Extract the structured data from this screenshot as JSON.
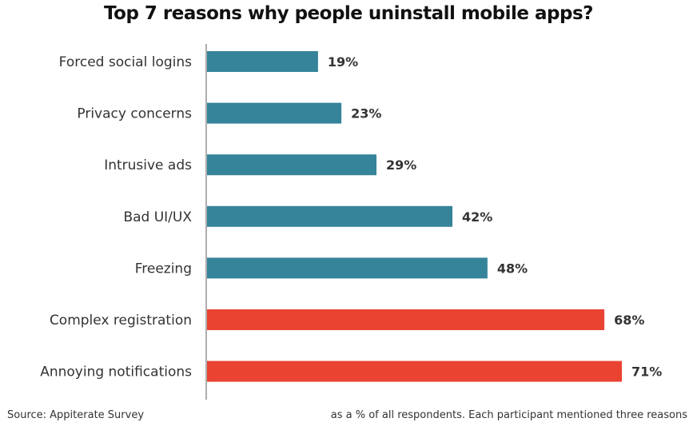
{
  "chart_data": {
    "type": "bar",
    "orientation": "horizontal",
    "title": "Top 7 reasons why people uninstall mobile apps?",
    "categories": [
      "Forced social logins",
      "Privacy concerns",
      "Intrusive ads",
      "Bad UI/UX",
      "Freezing",
      "Complex registration",
      "Annoying notifications"
    ],
    "values": [
      19,
      23,
      29,
      42,
      48,
      68,
      71
    ],
    "value_labels": [
      "19%",
      "23%",
      "29%",
      "42%",
      "48%",
      "68%",
      "71%"
    ],
    "value_unit": "%",
    "xlim": [
      0,
      71
    ],
    "grid": false,
    "legend": "none",
    "colors": {
      "default": "#36849a",
      "highlight": "#ea4332",
      "axis": "#777777"
    },
    "highlighted": [
      false,
      false,
      false,
      false,
      false,
      true,
      true
    ]
  },
  "footer": {
    "source": "Source: Appiterate Survey",
    "note": "as a % of all respondents. Each participant  mentioned three reasons"
  }
}
